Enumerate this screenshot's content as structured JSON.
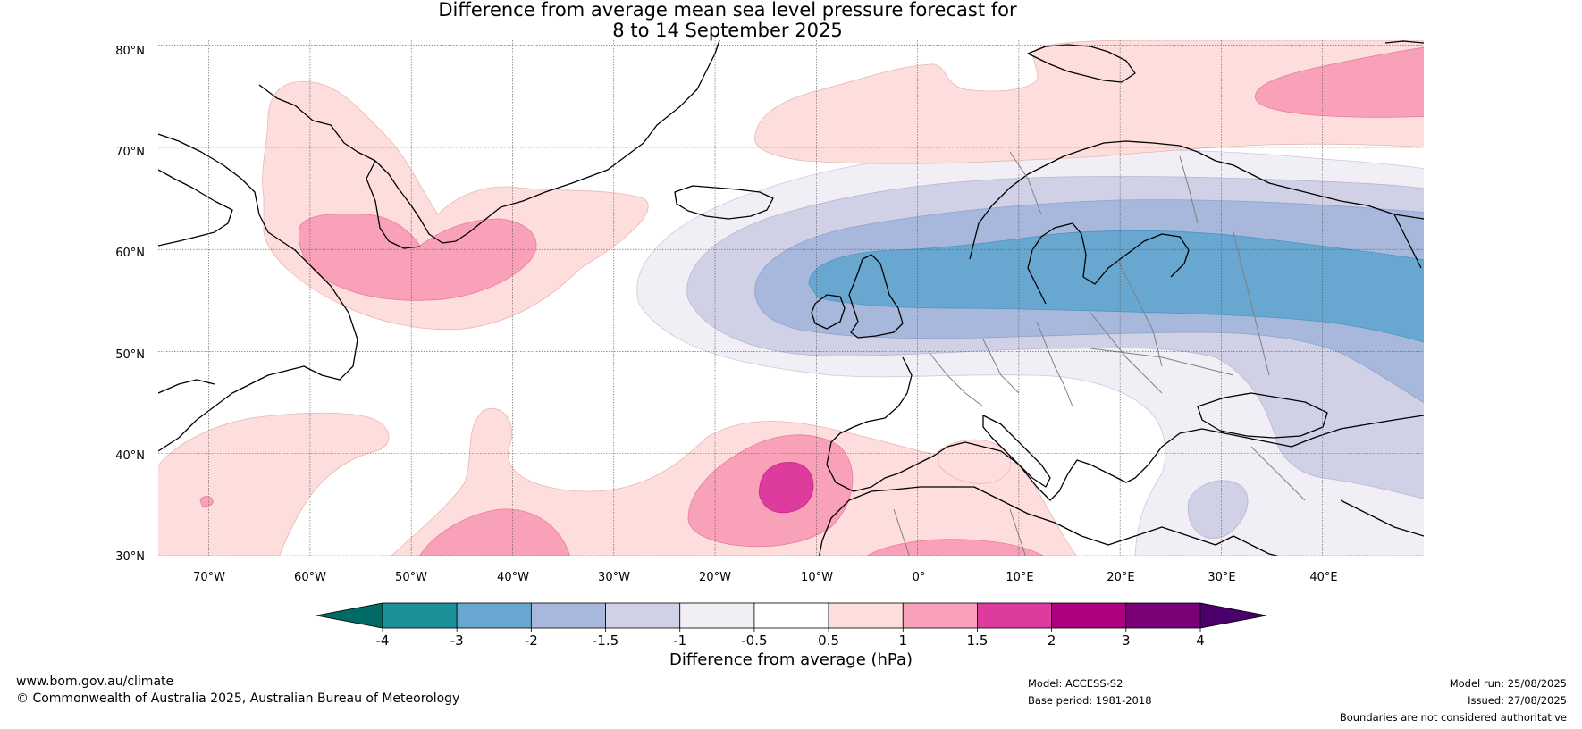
{
  "title_line1": "Difference from average mean sea level pressure forecast for",
  "title_line2": "8 to 14 September 2025",
  "map": {
    "lat_labels": [
      "80°N",
      "70°N",
      "60°N",
      "50°N",
      "40°N",
      "30°N"
    ],
    "lon_labels": [
      "70°W",
      "60°W",
      "50°W",
      "40°W",
      "30°W",
      "20°W",
      "10°W",
      "0°",
      "10°E",
      "20°E",
      "30°E",
      "40°E"
    ],
    "lat_range": [
      30,
      80.5
    ],
    "lon_range": [
      -75,
      50
    ],
    "gridlines": true
  },
  "colorbar": {
    "tick_labels": [
      "-4",
      "-3",
      "-2",
      "-1.5",
      "-1",
      "-0.5",
      "0.5",
      "1",
      "1.5",
      "2",
      "3",
      "4"
    ],
    "colors": [
      "#006a64",
      "#1c9199",
      "#67a7d0",
      "#a7b8dc",
      "#d0d0e6",
      "#f1eef5",
      "#ffffff",
      "#fddedc",
      "#f9a1b9",
      "#dd3b9e",
      "#ad017e",
      "#7a0077",
      "#4a006a"
    ],
    "label": "Difference from average (hPa)"
  },
  "footer": {
    "url": "www.bom.gov.au/climate",
    "copyright": "© Commonwealth of Australia 2025, Australian Bureau of Meteorology",
    "model": "Model: ACCESS-S2",
    "base_period": "Base period: 1981-2018",
    "model_run": "Model run: 25/08/2025",
    "issued": "Issued: 27/08/2025",
    "disclaimer": "Boundaries are not considered authoritative"
  }
}
